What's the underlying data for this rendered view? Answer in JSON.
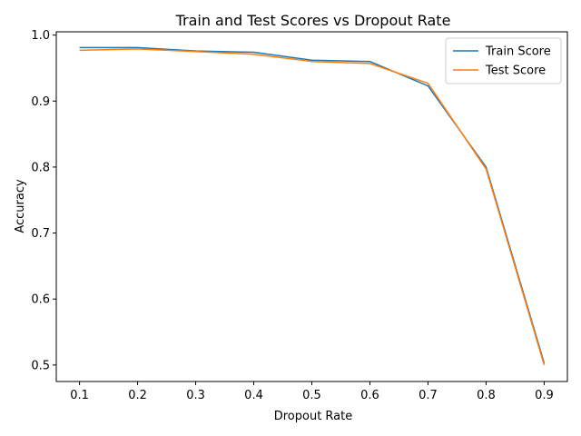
{
  "chart_data": {
    "type": "line",
    "title": "Train and Test Scores vs Dropout Rate",
    "xlabel": "Dropout Rate",
    "ylabel": "Accuracy",
    "x": [
      0.1,
      0.2,
      0.3,
      0.4,
      0.5,
      0.6,
      0.7,
      0.8,
      0.9
    ],
    "xticks": [
      "0.1",
      "0.2",
      "0.3",
      "0.4",
      "0.5",
      "0.6",
      "0.7",
      "0.8",
      "0.9"
    ],
    "yticks": [
      "0.5",
      "0.6",
      "0.7",
      "0.8",
      "0.9",
      "1.0"
    ],
    "yticks_values": [
      0.5,
      0.6,
      0.7,
      0.8,
      0.9,
      1.0
    ],
    "xlim": [
      0.06,
      0.94
    ],
    "ylim": [
      0.475,
      1.005
    ],
    "grid": false,
    "legend_position": "upper right",
    "series": [
      {
        "name": "Train Score",
        "color": "#1f77b4",
        "values": [
          0.981,
          0.981,
          0.976,
          0.974,
          0.962,
          0.96,
          0.923,
          0.8,
          0.503
        ]
      },
      {
        "name": "Test Score",
        "color": "#ff7f0e",
        "values": [
          0.977,
          0.979,
          0.975,
          0.971,
          0.96,
          0.957,
          0.927,
          0.797,
          0.5
        ]
      }
    ]
  }
}
